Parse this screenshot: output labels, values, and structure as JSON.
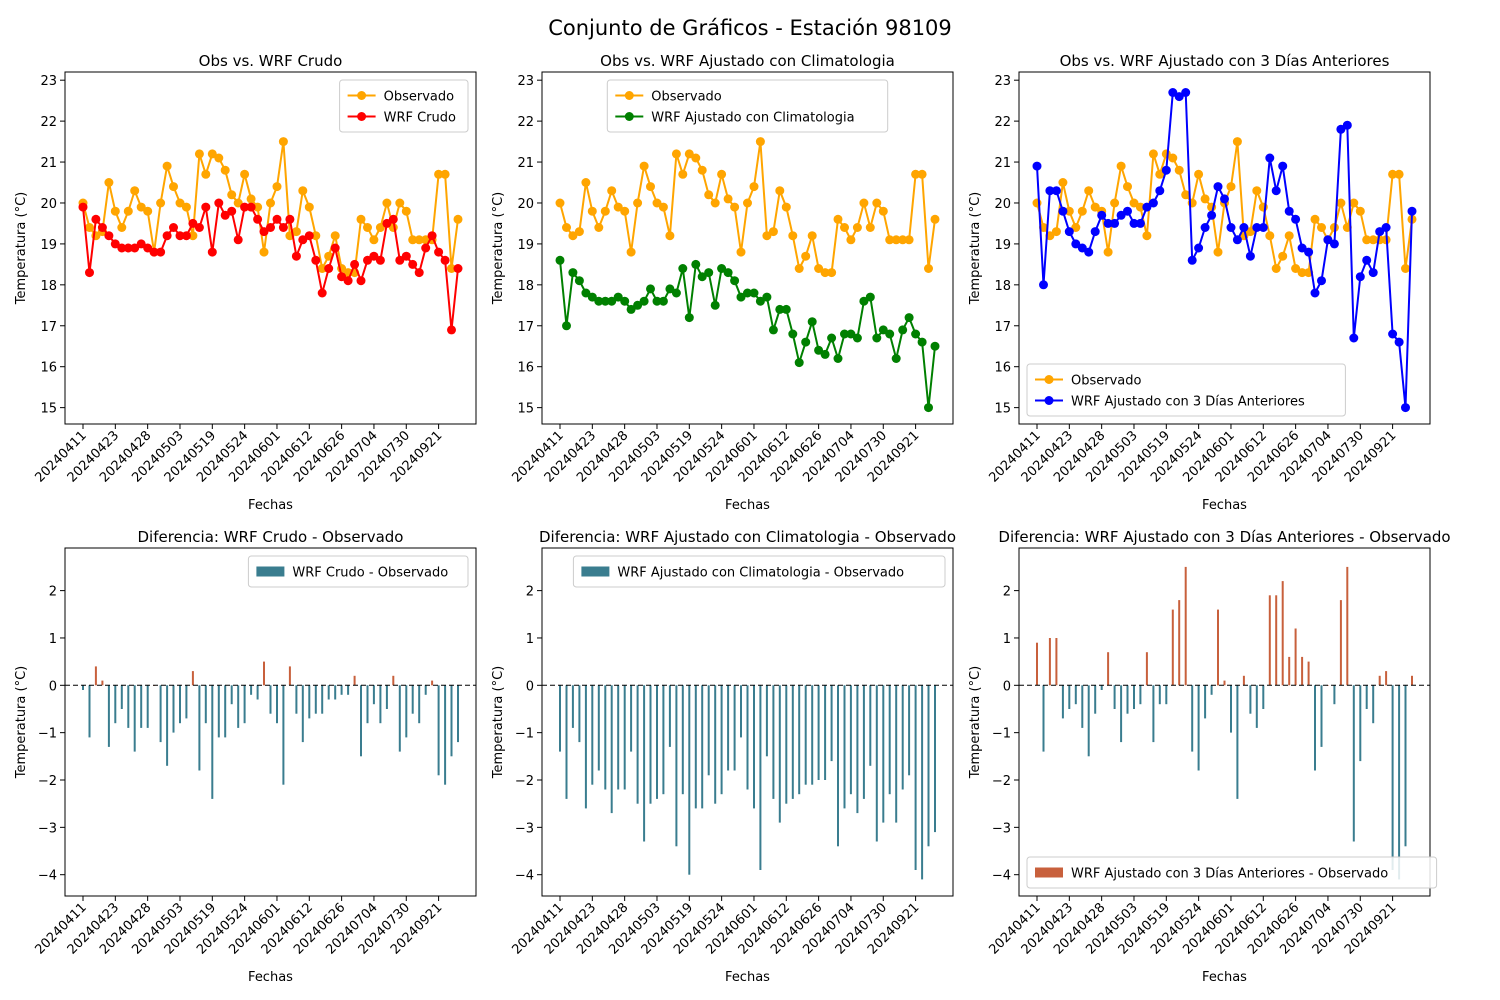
{
  "figure": {
    "title": "Conjunto de Gráficos - Estación 98109"
  },
  "colors": {
    "observed": "#ffa500",
    "wrf_crudo": "#ff0000",
    "wrf_clim": "#008000",
    "wrf_3d": "#0000ff",
    "diff_neg": "#3a7d8f",
    "diff_pos": "#c8603c"
  },
  "x_tick_labels": [
    "20240411",
    "20240423",
    "20240428",
    "20240503",
    "20240519",
    "20240524",
    "20240601",
    "20240612",
    "20240626",
    "20240704",
    "20240730",
    "20240921"
  ],
  "chart_data": [
    {
      "type": "line",
      "title": "Obs vs. WRF Crudo",
      "xlabel": "Fechas",
      "ylabel": "Temperatura (°C)",
      "ylim": [
        14.6,
        23.2
      ],
      "yticks": [
        15,
        16,
        17,
        18,
        19,
        20,
        21,
        22,
        23
      ],
      "legend_position": "top-right",
      "grid": false,
      "series": [
        {
          "name": "Observado",
          "color_key": "observed",
          "values": [
            20.0,
            19.4,
            19.2,
            19.3,
            20.5,
            19.8,
            19.4,
            19.8,
            20.3,
            19.9,
            19.8,
            18.8,
            20.0,
            20.9,
            20.4,
            20.0,
            19.9,
            19.2,
            21.2,
            20.7,
            21.2,
            21.1,
            20.8,
            20.2,
            20.0,
            20.7,
            20.1,
            19.9,
            18.8,
            20.0,
            20.4,
            21.5,
            19.2,
            19.3,
            20.3,
            19.9,
            19.2,
            18.4,
            18.7,
            19.2,
            18.4,
            18.3,
            18.3,
            19.6,
            19.4,
            19.1,
            19.4,
            20.0,
            19.4,
            20.0,
            19.8,
            19.1,
            19.1,
            19.1,
            19.1,
            20.7,
            20.7,
            18.4,
            19.6
          ]
        },
        {
          "name": "WRF Crudo",
          "color_key": "wrf_crudo",
          "values": [
            19.9,
            18.3,
            19.6,
            19.4,
            19.2,
            19.0,
            18.9,
            18.9,
            18.9,
            19.0,
            18.9,
            18.8,
            18.8,
            19.2,
            19.4,
            19.2,
            19.2,
            19.5,
            19.4,
            19.9,
            18.8,
            20.0,
            19.7,
            19.8,
            19.1,
            19.9,
            19.9,
            19.6,
            19.3,
            19.4,
            19.6,
            19.4,
            19.6,
            18.7,
            19.1,
            19.2,
            18.6,
            17.8,
            18.4,
            18.9,
            18.2,
            18.1,
            18.5,
            18.1,
            18.6,
            18.7,
            18.6,
            19.5,
            19.6,
            18.6,
            18.7,
            18.5,
            18.3,
            18.9,
            19.2,
            18.8,
            18.6,
            16.9,
            18.4
          ]
        }
      ]
    },
    {
      "type": "line",
      "title": "Obs vs. WRF Ajustado con Climatologia",
      "xlabel": "Fechas",
      "ylabel": "Temperatura (°C)",
      "ylim": [
        14.6,
        23.2
      ],
      "yticks": [
        15,
        16,
        17,
        18,
        19,
        20,
        21,
        22,
        23
      ],
      "legend_position": "top-center",
      "grid": false,
      "series": [
        {
          "name": "Observado",
          "color_key": "observed",
          "values": [
            20.0,
            19.4,
            19.2,
            19.3,
            20.5,
            19.8,
            19.4,
            19.8,
            20.3,
            19.9,
            19.8,
            18.8,
            20.0,
            20.9,
            20.4,
            20.0,
            19.9,
            19.2,
            21.2,
            20.7,
            21.2,
            21.1,
            20.8,
            20.2,
            20.0,
            20.7,
            20.1,
            19.9,
            18.8,
            20.0,
            20.4,
            21.5,
            19.2,
            19.3,
            20.3,
            19.9,
            19.2,
            18.4,
            18.7,
            19.2,
            18.4,
            18.3,
            18.3,
            19.6,
            19.4,
            19.1,
            19.4,
            20.0,
            19.4,
            20.0,
            19.8,
            19.1,
            19.1,
            19.1,
            19.1,
            20.7,
            20.7,
            18.4,
            19.6
          ]
        },
        {
          "name": "WRF Ajustado con Climatologia",
          "color_key": "wrf_clim",
          "values": [
            18.6,
            17.0,
            18.3,
            18.1,
            17.8,
            17.7,
            17.6,
            17.6,
            17.6,
            17.7,
            17.6,
            17.4,
            17.5,
            17.6,
            17.9,
            17.6,
            17.6,
            17.9,
            17.8,
            18.4,
            17.2,
            18.5,
            18.2,
            18.3,
            17.5,
            18.4,
            18.3,
            18.1,
            17.7,
            17.8,
            17.8,
            17.6,
            17.7,
            16.9,
            17.4,
            17.4,
            16.8,
            16.1,
            16.6,
            17.1,
            16.4,
            16.3,
            16.7,
            16.2,
            16.8,
            16.8,
            16.7,
            17.6,
            17.7,
            16.7,
            16.9,
            16.8,
            16.2,
            16.9,
            17.2,
            16.8,
            16.6,
            15.0,
            16.5
          ]
        }
      ]
    },
    {
      "type": "line",
      "title": "Obs vs. WRF Ajustado con 3 Días Anteriores",
      "xlabel": "Fechas",
      "ylabel": "Temperatura (°C)",
      "ylim": [
        14.6,
        23.2
      ],
      "yticks": [
        15,
        16,
        17,
        18,
        19,
        20,
        21,
        22,
        23
      ],
      "legend_position": "lower-left",
      "grid": false,
      "series": [
        {
          "name": "Observado",
          "color_key": "observed",
          "values": [
            20.0,
            19.4,
            19.2,
            19.3,
            20.5,
            19.8,
            19.4,
            19.8,
            20.3,
            19.9,
            19.8,
            18.8,
            20.0,
            20.9,
            20.4,
            20.0,
            19.9,
            19.2,
            21.2,
            20.7,
            21.2,
            21.1,
            20.8,
            20.2,
            20.0,
            20.7,
            20.1,
            19.9,
            18.8,
            20.0,
            20.4,
            21.5,
            19.2,
            19.3,
            20.3,
            19.9,
            19.2,
            18.4,
            18.7,
            19.2,
            18.4,
            18.3,
            18.3,
            19.6,
            19.4,
            19.1,
            19.4,
            20.0,
            19.4,
            20.0,
            19.8,
            19.1,
            19.1,
            19.1,
            19.1,
            20.7,
            20.7,
            18.4,
            19.6
          ]
        },
        {
          "name": "WRF Ajustado con 3 Días Anteriores",
          "color_key": "wrf_3d",
          "values": [
            20.9,
            18.0,
            20.3,
            20.3,
            19.8,
            19.3,
            19.0,
            18.9,
            18.8,
            19.3,
            19.7,
            19.5,
            19.5,
            19.7,
            19.8,
            19.5,
            19.5,
            19.9,
            20.0,
            20.3,
            20.8,
            22.7,
            22.6,
            22.7,
            18.6,
            18.9,
            19.4,
            19.7,
            20.4,
            20.1,
            19.4,
            19.1,
            19.4,
            18.7,
            19.4,
            19.4,
            21.1,
            20.3,
            20.9,
            19.8,
            19.6,
            18.9,
            18.8,
            17.8,
            18.1,
            19.1,
            19.0,
            21.8,
            21.9,
            16.7,
            18.2,
            18.6,
            18.3,
            19.3,
            19.4,
            16.8,
            16.6,
            15.0,
            19.8
          ]
        }
      ]
    },
    {
      "type": "bar",
      "title": "Diferencia: WRF Crudo - Observado",
      "xlabel": "Fechas",
      "ylabel": "Temperatura (°C)",
      "ylim": [
        -4.45,
        2.9
      ],
      "yticks": [
        -4,
        -3,
        -2,
        -1,
        0,
        1,
        2
      ],
      "legend_position": "top-right",
      "grid": false,
      "zero_line": true,
      "series": [
        {
          "name": "WRF Crudo - Observado",
          "color_key": "diff_neg",
          "values": [
            -0.1,
            -1.1,
            0.4,
            0.1,
            -1.3,
            -0.8,
            -0.5,
            -0.9,
            -1.4,
            -0.9,
            -0.9,
            0.0,
            -1.2,
            -1.7,
            -1.0,
            -0.8,
            -0.7,
            0.3,
            -1.8,
            -0.8,
            -2.4,
            -1.1,
            -1.1,
            -0.4,
            -0.9,
            -0.8,
            -0.2,
            -0.3,
            0.5,
            -0.6,
            -0.8,
            -2.1,
            0.4,
            -0.6,
            -1.2,
            -0.7,
            -0.6,
            -0.6,
            -0.3,
            -0.3,
            -0.2,
            -0.2,
            0.2,
            -1.5,
            -0.8,
            -0.4,
            -0.8,
            -0.5,
            0.2,
            -1.4,
            -1.1,
            -0.6,
            -0.8,
            -0.2,
            0.1,
            -1.9,
            -2.1,
            -1.5,
            -1.2
          ]
        }
      ]
    },
    {
      "type": "bar",
      "title": "Diferencia: WRF Ajustado con Climatologia - Observado",
      "xlabel": "Fechas",
      "ylabel": "Temperatura (°C)",
      "ylim": [
        -4.45,
        2.9
      ],
      "yticks": [
        -4,
        -3,
        -2,
        -1,
        0,
        1,
        2
      ],
      "legend_position": "top-right",
      "grid": false,
      "zero_line": true,
      "series": [
        {
          "name": "WRF Ajustado con Climatologia - Observado",
          "color_key": "diff_neg",
          "values": [
            -1.4,
            -2.4,
            -0.9,
            -1.2,
            -2.6,
            -2.1,
            -1.8,
            -2.2,
            -2.7,
            -2.2,
            -2.2,
            -1.4,
            -2.5,
            -3.3,
            -2.5,
            -2.4,
            -2.3,
            -1.3,
            -3.4,
            -2.3,
            -4.0,
            -2.6,
            -2.6,
            -1.9,
            -2.5,
            -2.3,
            -1.8,
            -1.8,
            -1.1,
            -2.2,
            -2.6,
            -3.9,
            -1.5,
            -2.4,
            -2.9,
            -2.5,
            -2.4,
            -2.3,
            -2.1,
            -2.1,
            -2.0,
            -2.0,
            -1.6,
            -3.4,
            -2.6,
            -2.3,
            -2.7,
            -2.4,
            -1.7,
            -3.3,
            -2.9,
            -2.3,
            -2.9,
            -2.2,
            -1.9,
            -3.9,
            -4.1,
            -3.4,
            -3.1
          ]
        }
      ]
    },
    {
      "type": "bar",
      "title": "Diferencia: WRF Ajustado con 3 Días Anteriores - Observado",
      "xlabel": "Fechas",
      "ylabel": "Temperatura (°C)",
      "ylim": [
        -4.45,
        2.9
      ],
      "yticks": [
        -4,
        -3,
        -2,
        -1,
        0,
        1,
        2
      ],
      "legend_position": "lower-left",
      "grid": false,
      "zero_line": true,
      "series": [
        {
          "name": "WRF Ajustado con 3 Días Anteriores - Observado",
          "color_key": "diff_pos",
          "values": [
            0.9,
            -1.4,
            1.0,
            1.0,
            -0.7,
            -0.5,
            -0.4,
            -0.9,
            -1.5,
            -0.6,
            -0.1,
            0.7,
            -0.5,
            -1.2,
            -0.6,
            -0.5,
            -0.4,
            0.7,
            -1.2,
            -0.4,
            -0.4,
            1.6,
            1.8,
            2.5,
            -1.4,
            -1.8,
            -0.7,
            -0.2,
            1.6,
            0.1,
            -1.0,
            -2.4,
            0.2,
            -0.6,
            -0.9,
            -0.5,
            1.9,
            1.9,
            2.2,
            0.6,
            1.2,
            0.6,
            0.5,
            -1.8,
            -1.3,
            0.0,
            -0.4,
            1.8,
            2.5,
            -3.3,
            -1.6,
            -0.5,
            -0.8,
            0.2,
            0.3,
            -3.9,
            -4.1,
            -3.4,
            0.2
          ]
        }
      ]
    }
  ]
}
